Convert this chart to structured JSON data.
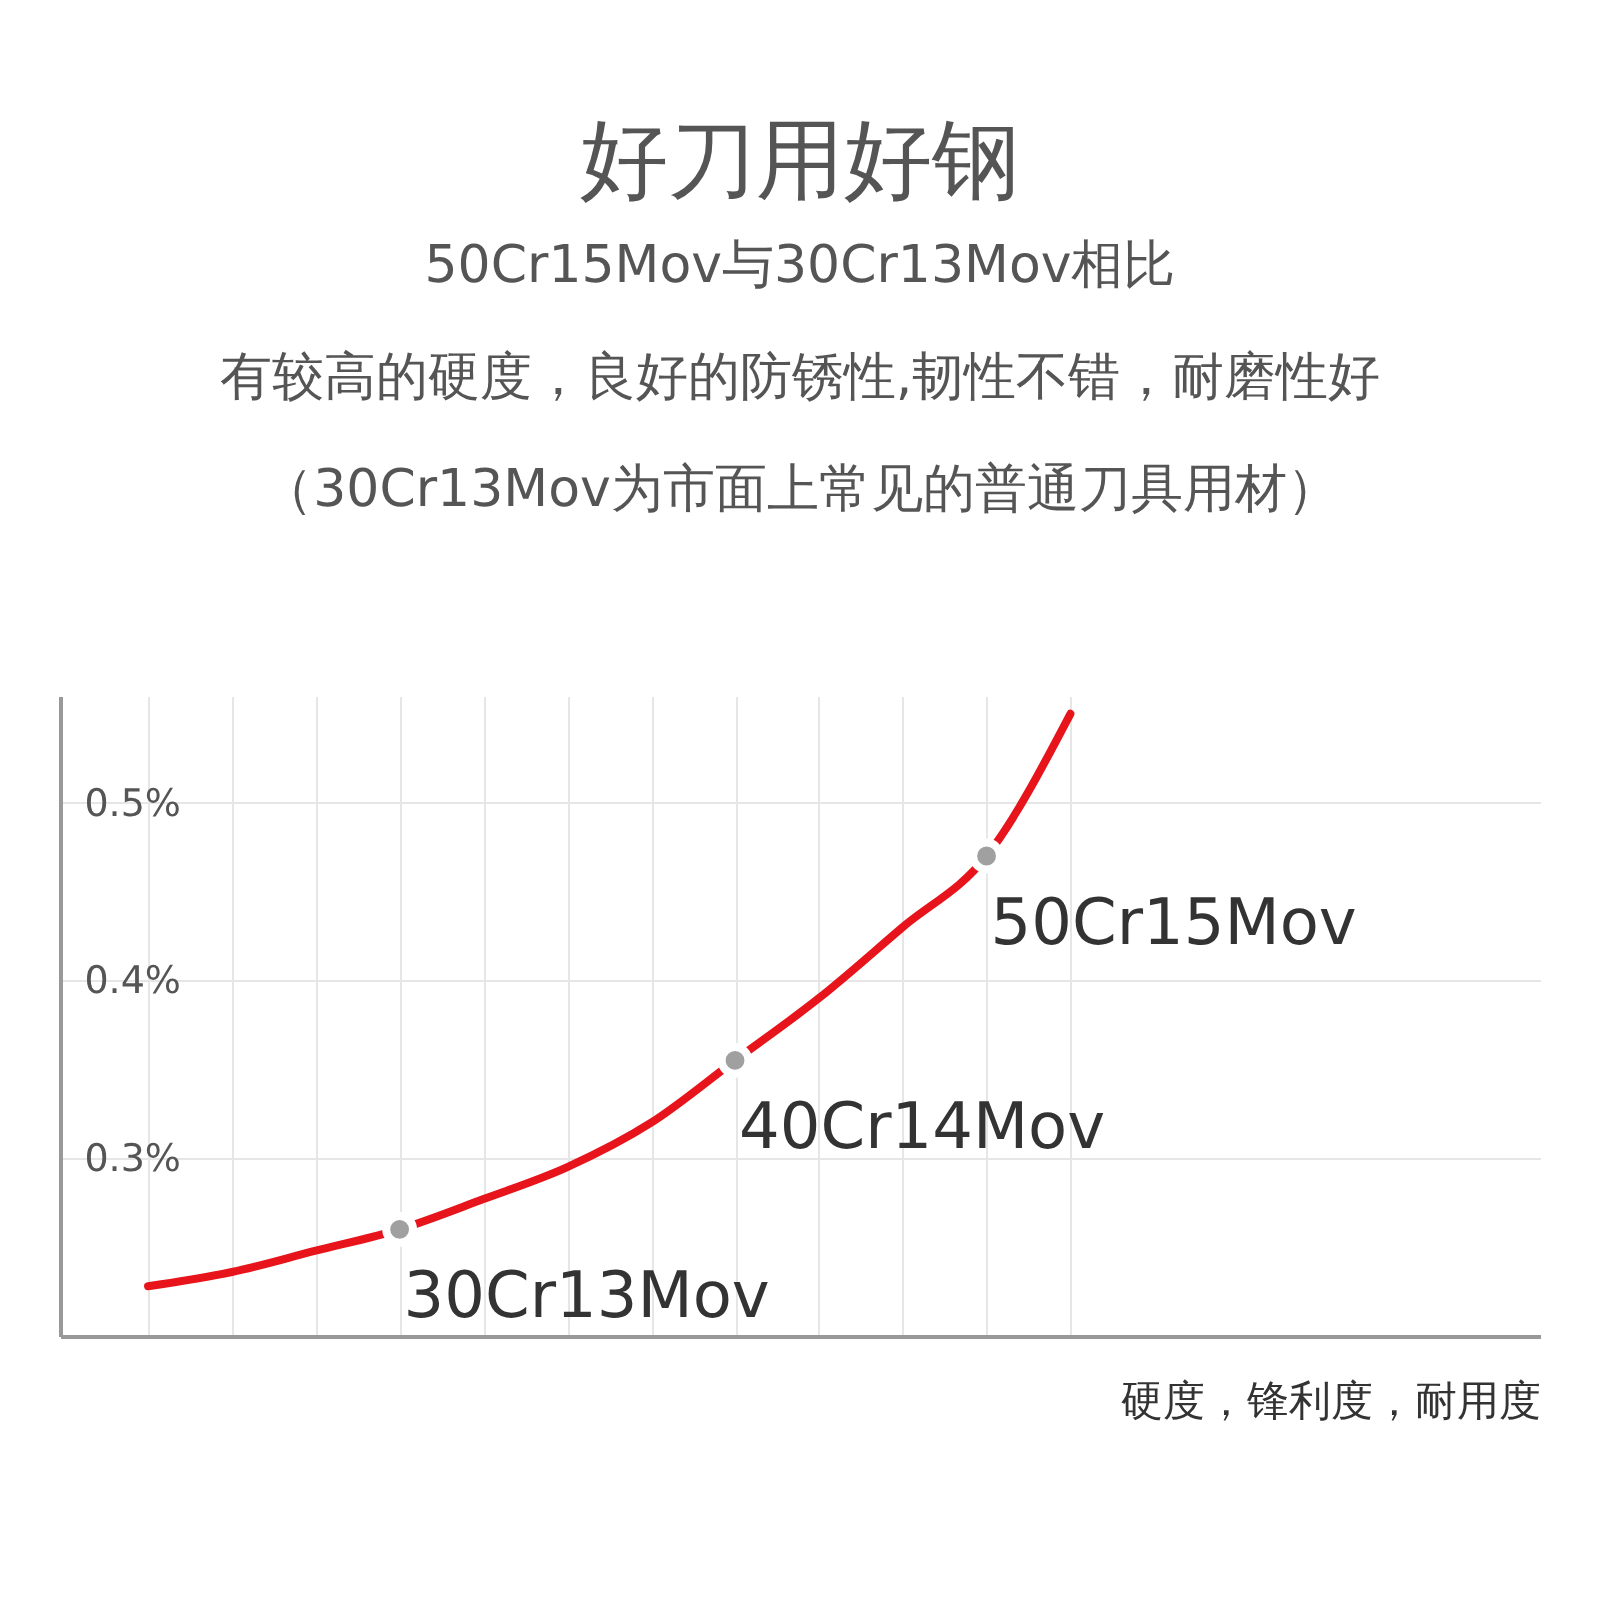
{
  "chart_data": {
    "type": "line",
    "title": "好刀用好钢",
    "subtitle": "50Cr15Mov与30Cr13Mov相比",
    "annotations": [
      "有较高的硬度，良好的防锈性,韧性不错，耐磨性好",
      "（30Cr13Mov为市面上常见的普通刀具用材）"
    ],
    "xlabel": "硬度，锋利度，耐用度",
    "categories": [
      null,
      null,
      null,
      null,
      null,
      null,
      null,
      null,
      null,
      null,
      null,
      null
    ],
    "series": [
      {
        "color": "#e8141c",
        "values": [
          0.228,
          0.236,
          0.248,
          0.26,
          0.277,
          0.295,
          0.32,
          0.355,
          0.39,
          0.43,
          0.47,
          0.55
        ]
      },
      {
        "type": "scatter",
        "name": "30Cr13Mov",
        "color": "#a0a0a0",
        "values": [
          null,
          null,
          null,
          0.26,
          null,
          null,
          null,
          null,
          null,
          null,
          null,
          null
        ]
      },
      {
        "type": "scatter",
        "name": "40Cr14Mov",
        "color": "#a0a0a0",
        "values": [
          null,
          null,
          null,
          null,
          null,
          null,
          null,
          0.355,
          null,
          null,
          null,
          null
        ]
      },
      {
        "type": "scatter",
        "name": "50Cr15Mov",
        "color": "#a0a0a0",
        "values": [
          null,
          null,
          null,
          null,
          null,
          null,
          null,
          null,
          null,
          null,
          0.47,
          null
        ]
      }
    ],
    "ylim": [
      0.2,
      0.56
    ],
    "yticks": [
      {
        "value": 0.3,
        "label": "0.3%"
      },
      {
        "value": 0.4,
        "label": "0.4%"
      },
      {
        "value": 0.5,
        "label": "0.5%"
      }
    ],
    "grid": true,
    "tick_labels": "y",
    "line_style": "solid"
  }
}
